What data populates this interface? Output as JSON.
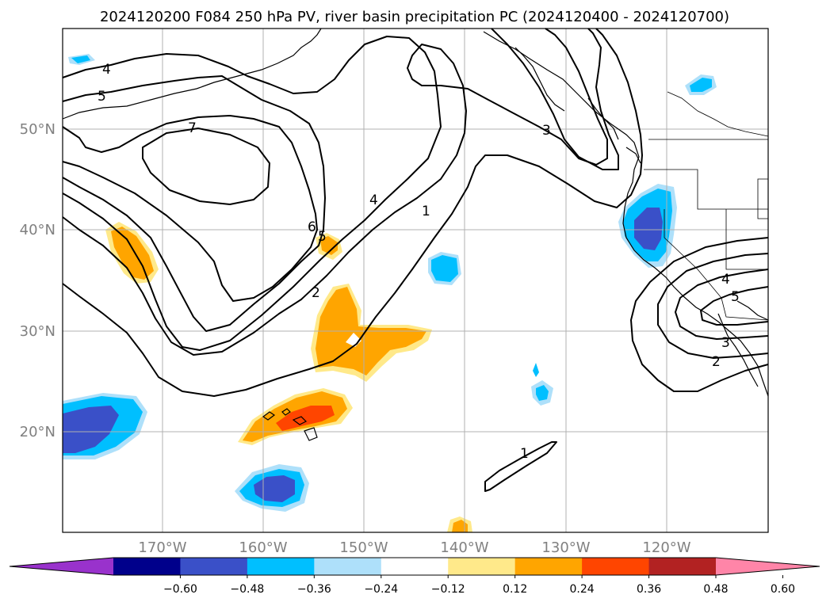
{
  "title": "2024120200 F084 250 hPa PV, river basin precipitation PC (2024120400 - 2024120700)",
  "lat_labels": [
    "50°N",
    "40°N",
    "30°N",
    "20°N"
  ],
  "lon_labels": [
    "170°W",
    "160°W",
    "150°W",
    "140°W",
    "130°W",
    "120°W"
  ],
  "contour_labels": [
    "4",
    "5",
    "7",
    "6",
    "5",
    "4",
    "2",
    "1",
    "3",
    "1",
    "4",
    "5",
    "3",
    "2"
  ],
  "colorbar": {
    "ticks": [
      "−0.60",
      "−0.48",
      "−0.36",
      "−0.24",
      "−0.12",
      "0.12",
      "0.24",
      "0.36",
      "0.48",
      "0.60"
    ],
    "colors": [
      "#9932cc",
      "#00008b",
      "#3a50c8",
      "#00bfff",
      "#aee0fa",
      "#ffffff",
      "#ffe98a",
      "#ffa500",
      "#ff4500",
      "#b22222",
      "#ff85a8"
    ]
  },
  "colors": {
    "blue_dark": "#3a50c8",
    "blue": "#00bfff",
    "blue_light": "#aee0fa",
    "yellow": "#ffe98a",
    "orange": "#ffa500",
    "red_orange": "#ff4500"
  }
}
